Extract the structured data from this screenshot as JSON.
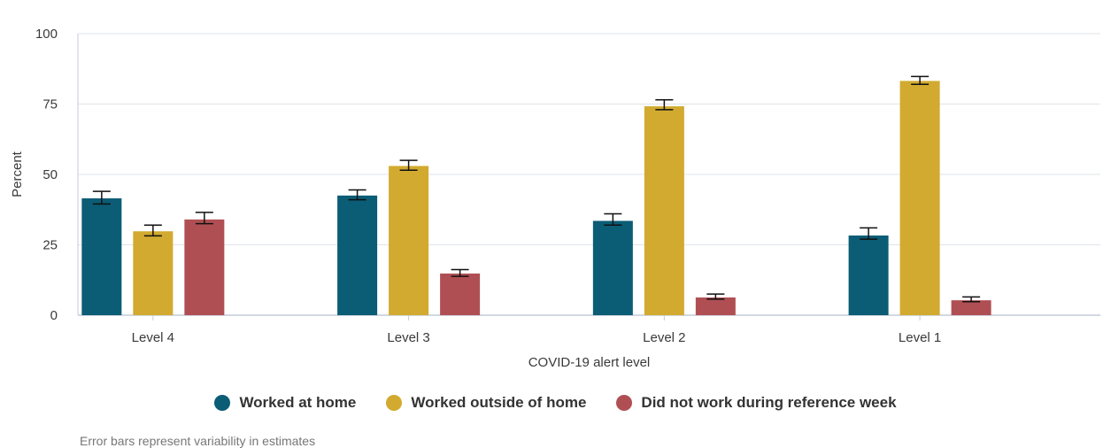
{
  "chart_data": {
    "type": "bar",
    "categories": [
      "Level 4",
      "Level 3",
      "Level 2",
      "Level 1"
    ],
    "series": [
      {
        "name": "Worked at home",
        "color": "#0b5c75",
        "values": [
          41.5,
          42.5,
          33.5,
          28.3
        ],
        "error_low": [
          39.5,
          41.0,
          32.0,
          27.0
        ],
        "error_high": [
          44.0,
          44.5,
          36.0,
          31.0
        ]
      },
      {
        "name": "Worked outside of home",
        "color": "#d1aa2f",
        "values": [
          29.8,
          53.0,
          74.2,
          83.2
        ],
        "error_low": [
          28.2,
          51.5,
          73.0,
          82.0
        ],
        "error_high": [
          32.0,
          55.0,
          76.5,
          84.8
        ]
      },
      {
        "name": "Did not work during reference week",
        "color": "#b04f53",
        "values": [
          34.0,
          14.8,
          6.3,
          5.3
        ],
        "error_low": [
          32.5,
          13.8,
          5.7,
          4.8
        ],
        "error_high": [
          36.5,
          16.2,
          7.5,
          6.5
        ]
      }
    ],
    "ylim": [
      0,
      100
    ],
    "yticks": [
      0,
      25,
      50,
      75,
      100
    ],
    "xlabel": "COVID-19 alert level",
    "ylabel": "Percent",
    "grid": true,
    "legend_position": "bottom-center",
    "footnote": "Error bars represent variability in estimates"
  }
}
